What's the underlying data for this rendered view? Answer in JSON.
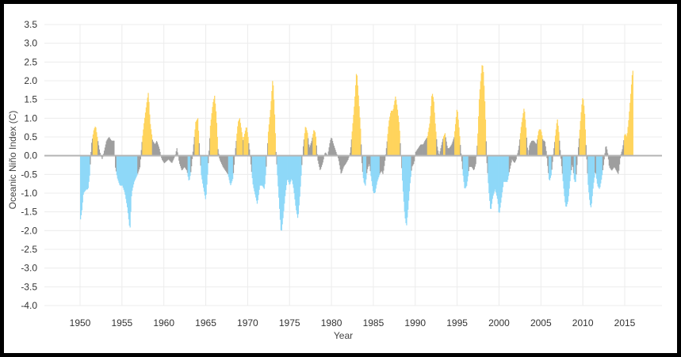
{
  "chart_data": {
    "type": "bar",
    "title": "",
    "xlabel": "Year",
    "ylabel": "Oceanic Niño Index (C)",
    "xlim": [
      1947.7,
      1970.0
    ],
    "ylim": [
      -4.0,
      3.5
    ],
    "x_ticks": [
      "1950",
      "1955",
      "1960",
      "1965",
      "1970",
      "1975",
      "1980",
      "1985",
      "1990",
      "1995",
      "2000",
      "2005",
      "2010",
      "2015"
    ],
    "y_ticks": [
      "3.5",
      "3.0",
      "2.5",
      "2.0",
      "1.5",
      "1.0",
      "0.5",
      "0.0",
      "-0.5",
      "-1.0",
      "-1.5",
      "-2.0",
      "-2.5",
      "-3.0",
      "-3.5",
      "-4.0"
    ],
    "grid": true,
    "legend": "none",
    "thresholds": {
      "el_nino": 0.5,
      "la_nina": -0.5
    },
    "colors": {
      "el_nino": "#FFD45C",
      "la_nina": "#8ED8F8",
      "neutral": "#9E9E9E",
      "zero_line": "#B5B5B5",
      "grid": "#ECECEC"
    },
    "monthly_start": "1950-01",
    "anchors": [
      [
        1950.0,
        -1.7
      ],
      [
        1950.15,
        -1.5
      ],
      [
        1950.35,
        -1.0
      ],
      [
        1950.7,
        -0.9
      ],
      [
        1950.9,
        -0.9
      ],
      [
        1951.1,
        -0.5
      ],
      [
        1951.3,
        0.3
      ],
      [
        1951.6,
        0.7
      ],
      [
        1951.8,
        0.8
      ],
      [
        1952.0,
        0.5
      ],
      [
        1952.3,
        0.1
      ],
      [
        1952.6,
        -0.1
      ],
      [
        1952.9,
        0.2
      ],
      [
        1953.1,
        0.4
      ],
      [
        1953.4,
        0.5
      ],
      [
        1953.7,
        0.4
      ],
      [
        1954.0,
        0.4
      ],
      [
        1954.15,
        -0.3
      ],
      [
        1954.4,
        -0.6
      ],
      [
        1954.7,
        -0.8
      ],
      [
        1955.0,
        -0.8
      ],
      [
        1955.3,
        -1.0
      ],
      [
        1955.6,
        -1.4
      ],
      [
        1955.9,
        -2.0
      ],
      [
        1956.1,
        -1.0
      ],
      [
        1956.4,
        -0.7
      ],
      [
        1956.8,
        -0.5
      ],
      [
        1957.1,
        -0.3
      ],
      [
        1957.3,
        0.3
      ],
      [
        1957.6,
        0.9
      ],
      [
        1957.9,
        1.4
      ],
      [
        1958.1,
        1.7
      ],
      [
        1958.3,
        0.9
      ],
      [
        1958.6,
        0.4
      ],
      [
        1958.9,
        0.3
      ],
      [
        1959.1,
        0.4
      ],
      [
        1959.4,
        0.2
      ],
      [
        1959.7,
        -0.1
      ],
      [
        1960.0,
        -0.2
      ],
      [
        1960.5,
        -0.1
      ],
      [
        1960.9,
        -0.2
      ],
      [
        1961.3,
        0.0
      ],
      [
        1961.5,
        0.2
      ],
      [
        1961.8,
        -0.2
      ],
      [
        1962.1,
        -0.4
      ],
      [
        1962.4,
        -0.3
      ],
      [
        1962.7,
        -0.4
      ],
      [
        1962.95,
        -0.7
      ],
      [
        1963.2,
        -0.4
      ],
      [
        1963.5,
        0.3
      ],
      [
        1963.75,
        0.9
      ],
      [
        1964.0,
        1.0
      ],
      [
        1964.2,
        0.2
      ],
      [
        1964.4,
        -0.5
      ],
      [
        1964.7,
        -0.9
      ],
      [
        1964.95,
        -1.2
      ],
      [
        1965.2,
        -0.4
      ],
      [
        1965.5,
        0.8
      ],
      [
        1965.8,
        1.4
      ],
      [
        1966.0,
        1.6
      ],
      [
        1966.2,
        1.1
      ],
      [
        1966.4,
        0.2
      ],
      [
        1966.6,
        -0.1
      ],
      [
        1966.8,
        -0.2
      ],
      [
        1967.0,
        -0.3
      ],
      [
        1967.3,
        -0.4
      ],
      [
        1967.6,
        -0.5
      ],
      [
        1967.9,
        -0.8
      ],
      [
        1968.2,
        -0.6
      ],
      [
        1968.5,
        0.2
      ],
      [
        1968.8,
        0.9
      ],
      [
        1969.0,
        1.0
      ],
      [
        1969.2,
        0.7
      ],
      [
        1969.4,
        0.4
      ],
      [
        1969.6,
        0.6
      ],
      [
        1969.8,
        0.8
      ],
      [
        1970.0,
        0.5
      ]
    ],
    "series": [
      {
        "values": [
          -1.7,
          -1.5,
          -1.2,
          -1.0,
          -1.0,
          -0.95,
          -0.9,
          -0.9,
          -0.7,
          -0.5,
          -0.2,
          0.3,
          0.6,
          0.7,
          0.8,
          0.7,
          0.5,
          0.3,
          0.1,
          0.0,
          -0.1,
          0.1,
          0.2,
          0.3,
          0.4,
          0.5,
          0.5,
          0.4,
          0.4,
          0.4,
          0.4,
          0.0,
          -0.3,
          -0.5,
          -0.6,
          -0.7,
          -0.8,
          -0.8,
          -0.9,
          -1.0,
          -1.1,
          -1.3,
          -1.5,
          -1.7,
          -2.0,
          -1.5,
          -1.0,
          -0.8,
          -0.7,
          -0.6,
          -0.5,
          -0.4,
          -0.3,
          0.1,
          0.5,
          0.9,
          1.1,
          1.4,
          1.6,
          1.5,
          0.9,
          0.6,
          0.4,
          0.3,
          0.3,
          0.4,
          0.3,
          0.1,
          -0.1,
          -0.2,
          -0.2,
          -0.15,
          -0.1,
          -0.15,
          -0.2,
          -0.1,
          0.0,
          0.2,
          0.0,
          -0.2,
          -0.4,
          -0.4,
          -0.3,
          -0.3,
          -0.4,
          -0.6,
          -0.7,
          -0.4,
          -0.1,
          0.3,
          0.6,
          0.9,
          1.0,
          0.5,
          0.0,
          -0.5,
          -0.7,
          -0.9,
          -1.1,
          -1.2,
          -0.6,
          -0.1,
          0.5,
          0.9,
          1.3,
          1.5,
          1.6,
          1.2,
          0.4,
          0.0,
          -0.1,
          -0.2,
          -0.2,
          -0.3,
          -0.3,
          -0.4,
          -0.5,
          -0.6,
          -0.8,
          -0.7,
          -0.5,
          0.0,
          0.4,
          0.7,
          0.9,
          1.0,
          0.8,
          0.6,
          0.4,
          0.5,
          0.7,
          0.8,
          0.6,
          0.5
        ],
        "start": "1950-01"
      }
    ]
  }
}
